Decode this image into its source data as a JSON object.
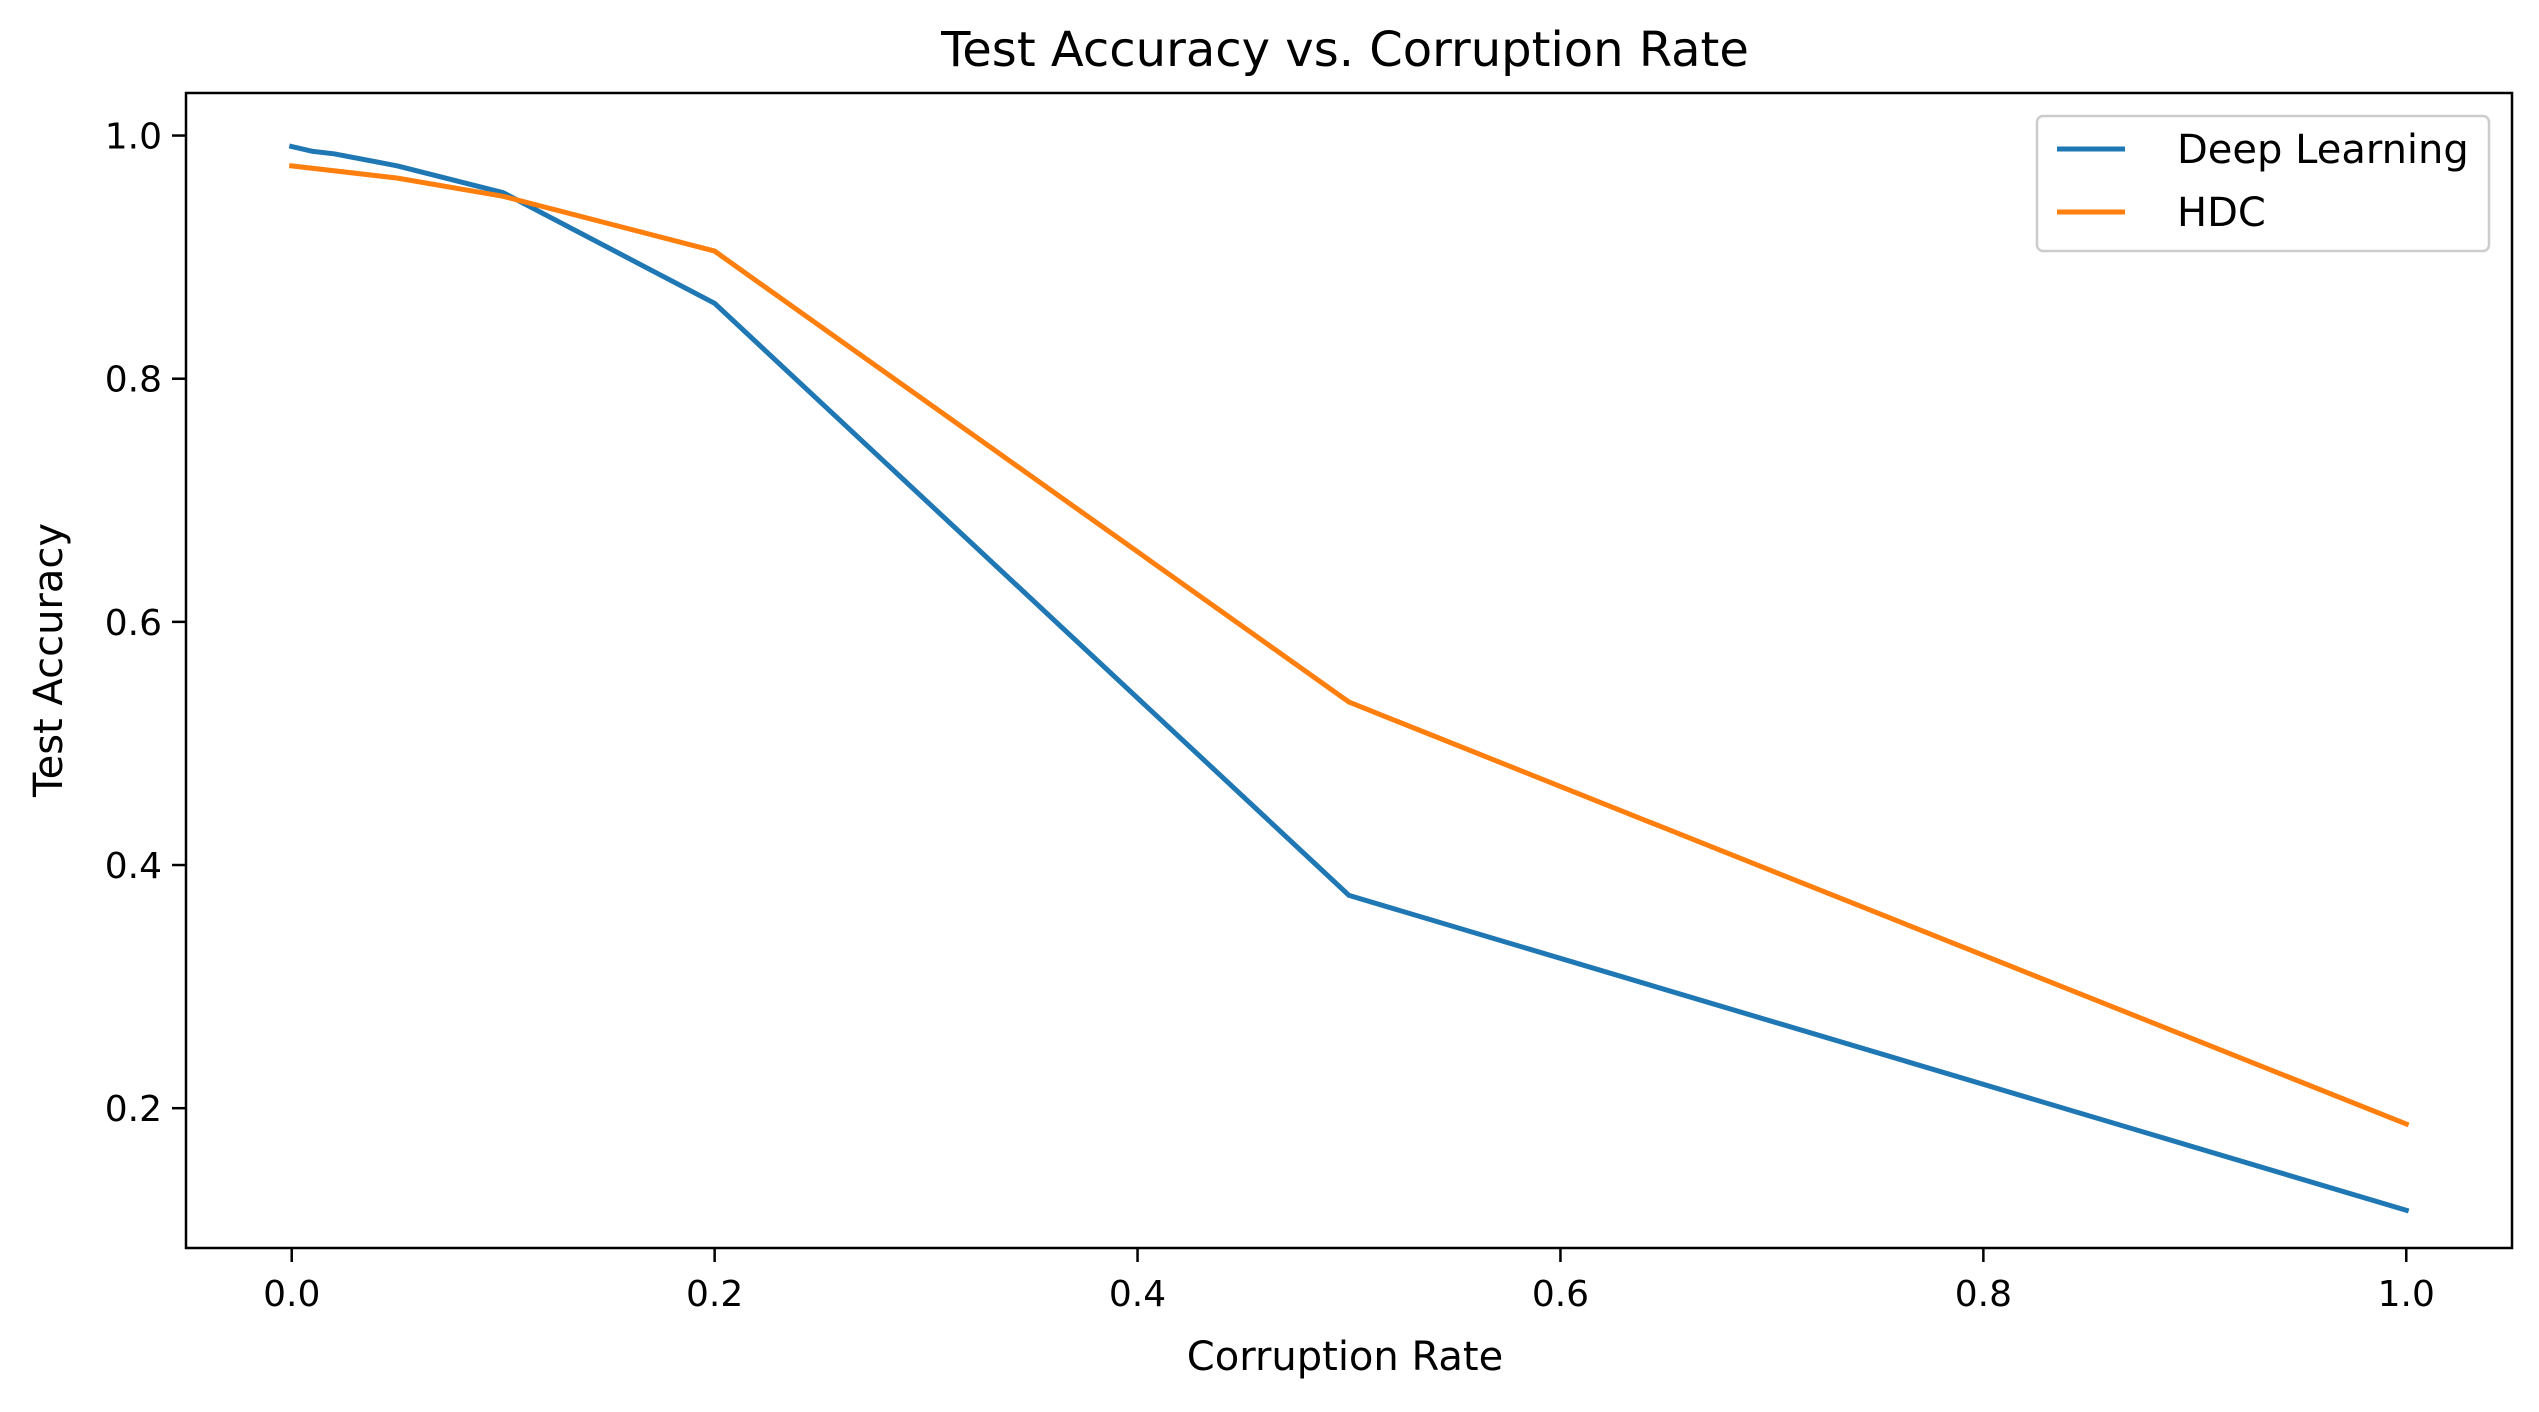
{
  "chart_data": {
    "type": "line",
    "title": "Test Accuracy vs. Corruption Rate",
    "xlabel": "Corruption Rate",
    "ylabel": "Test Accuracy",
    "xlim": [
      -0.05,
      1.05
    ],
    "ylim": [
      0.085,
      1.035
    ],
    "xticks": [
      0.0,
      0.2,
      0.4,
      0.6,
      0.8,
      1.0
    ],
    "xtick_labels": [
      "0.0",
      "0.2",
      "0.4",
      "0.6",
      "0.8",
      "1.0"
    ],
    "yticks": [
      0.2,
      0.4,
      0.6,
      0.8,
      1.0
    ],
    "ytick_labels": [
      "0.2",
      "0.4",
      "0.6",
      "0.8",
      "1.0"
    ],
    "grid": false,
    "legend_position": "top-right",
    "series": [
      {
        "name": "Deep Learning",
        "color": "#1f77b4",
        "x": [
          0.0,
          0.01,
          0.02,
          0.05,
          0.1,
          0.2,
          0.5,
          1.0
        ],
        "y": [
          0.991,
          0.987,
          0.985,
          0.975,
          0.953,
          0.862,
          0.375,
          0.116
        ]
      },
      {
        "name": "HDC",
        "color": "#ff7f0e",
        "x": [
          0.0,
          0.05,
          0.1,
          0.2,
          0.5,
          1.0
        ],
        "y": [
          0.975,
          0.965,
          0.95,
          0.905,
          0.534,
          0.187
        ]
      }
    ]
  }
}
